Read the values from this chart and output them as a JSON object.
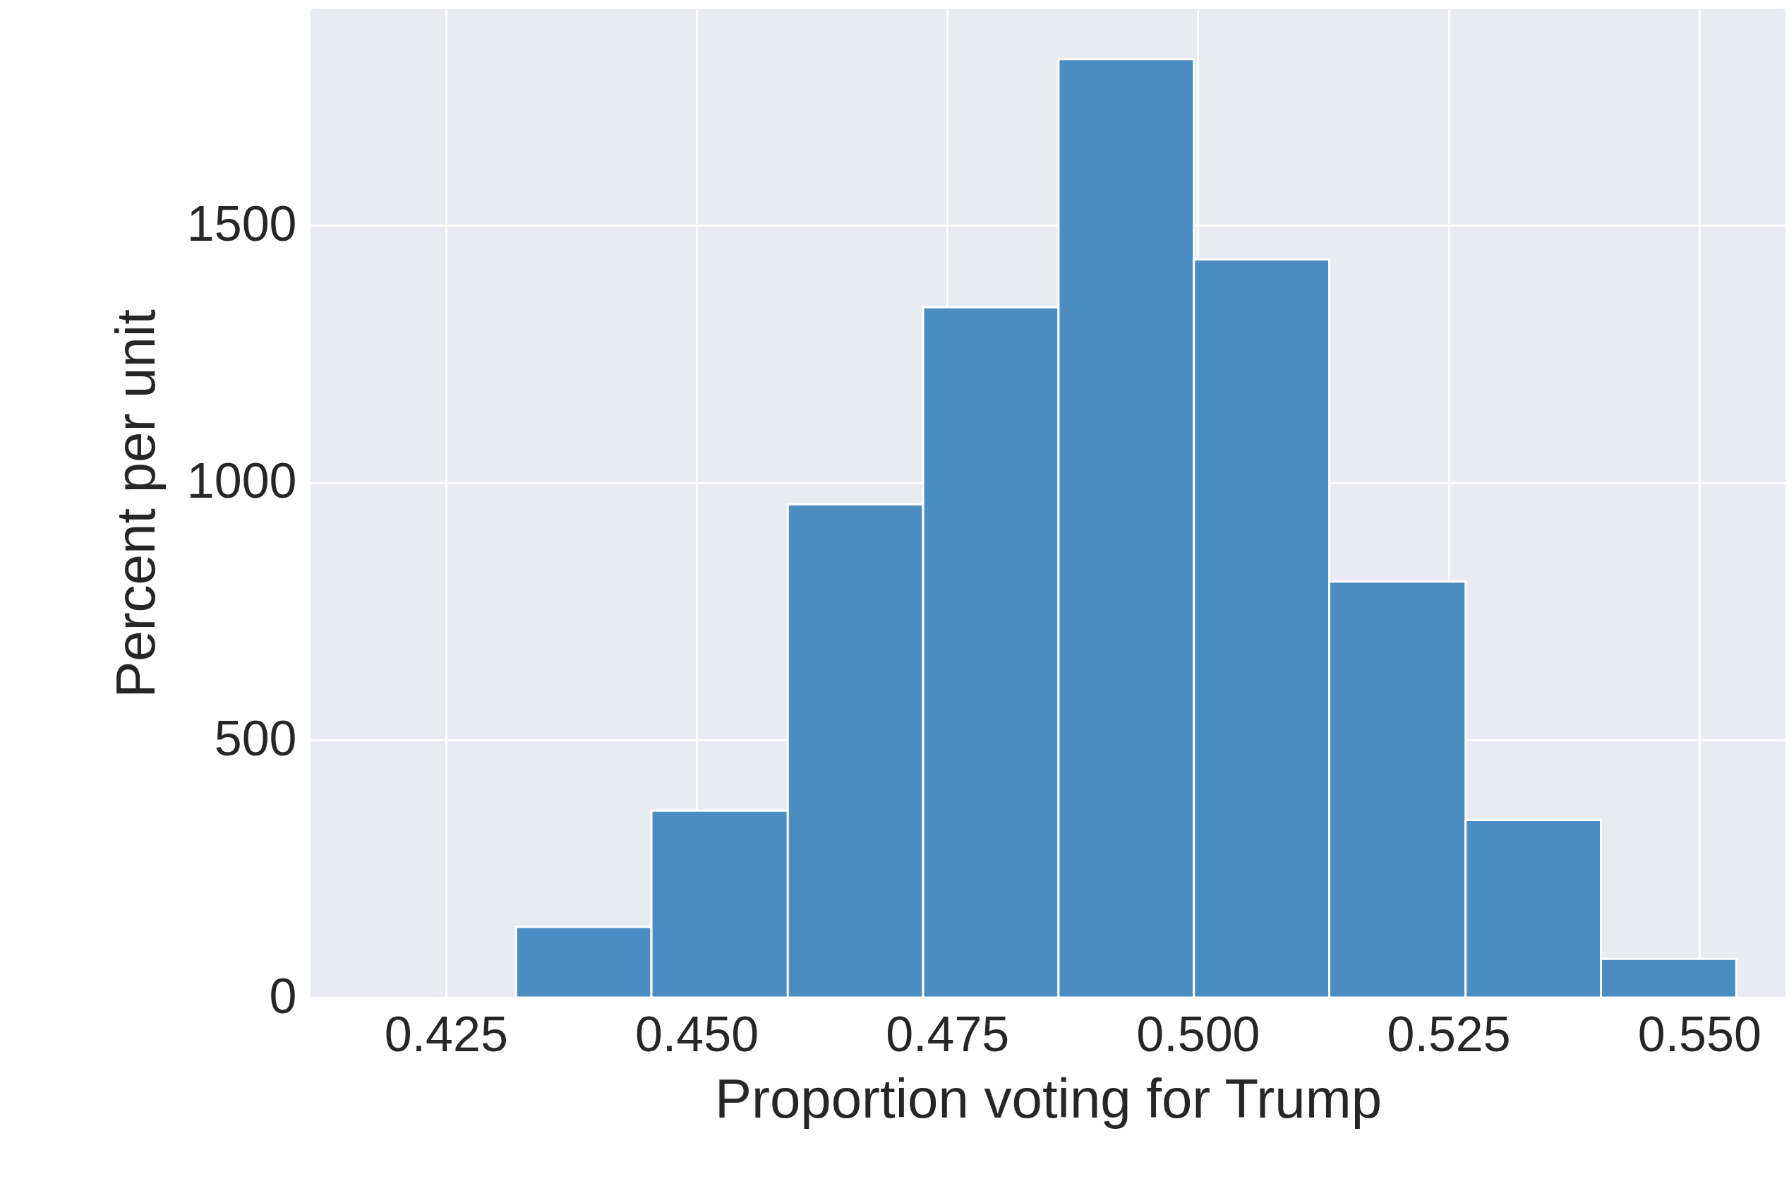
{
  "chart_data": {
    "type": "histogram",
    "xlabel": "Proportion voting for Trump",
    "ylabel": "Percent per unit",
    "bins": [
      0.432,
      0.4455,
      0.4591,
      0.4726,
      0.4861,
      0.4996,
      0.5131,
      0.5267,
      0.5402,
      0.5537
    ],
    "values": [
      137,
      363,
      958,
      1341,
      1823,
      1434,
      808,
      345,
      75
    ],
    "color": "#4a8dc2",
    "xlim": [
      0.4115,
      0.5586
    ],
    "xticks": [
      {
        "value": 0.425,
        "label": "0.425"
      },
      {
        "value": 0.45,
        "label": "0.450"
      },
      {
        "value": 0.475,
        "label": "0.475"
      },
      {
        "value": 0.5,
        "label": "0.500"
      },
      {
        "value": 0.525,
        "label": "0.525"
      },
      {
        "value": 0.55,
        "label": "0.550"
      }
    ],
    "ylim": [
      0,
      1920
    ],
    "yticks": [
      0,
      500,
      1000,
      1500
    ],
    "grid": true
  }
}
